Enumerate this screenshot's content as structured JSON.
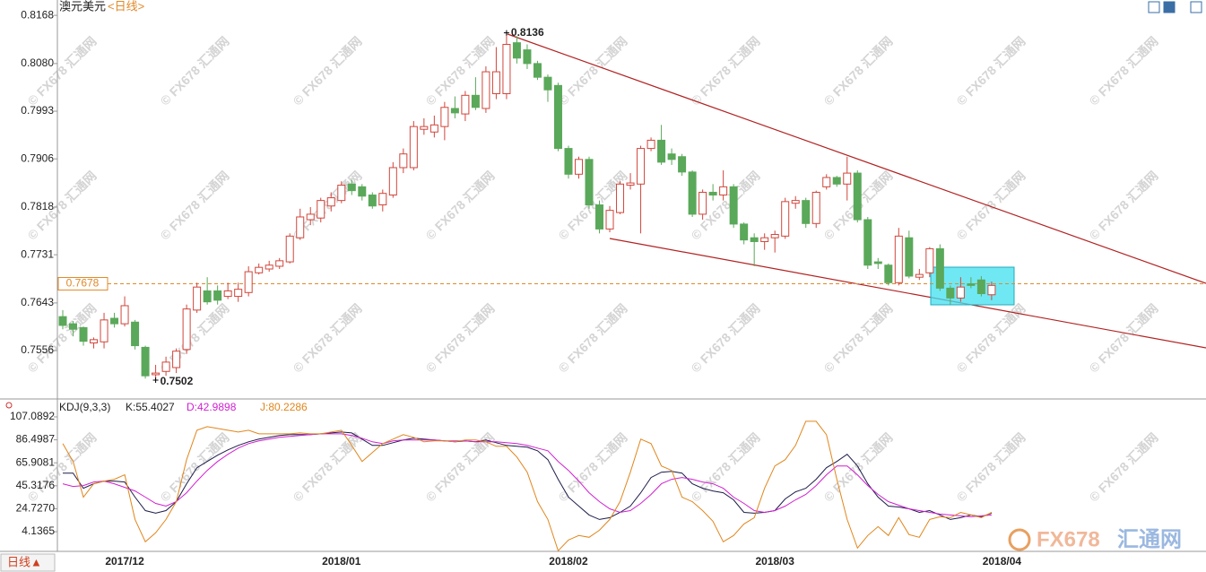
{
  "header": {
    "symbol": "澳元美元",
    "period": "<日线>"
  },
  "watermark": "© FX678 汇通网",
  "logo": {
    "brand": "FX678",
    "name": "汇通网"
  },
  "period_button": "日线▲",
  "chart_data": [
    {
      "type": "candlestick",
      "up_color": "#d0463c",
      "down_color": "#5aa85a",
      "open": [
        0.7618,
        0.7605,
        0.7598,
        0.757,
        0.7572,
        0.7615,
        0.7605,
        0.7608,
        0.7562,
        0.7512,
        0.7518,
        0.7525,
        0.7558,
        0.763,
        0.7665,
        0.7665,
        0.7655,
        0.7655,
        0.7662,
        0.7698,
        0.7705,
        0.771,
        0.7718,
        0.7762,
        0.7795,
        0.7798,
        0.782,
        0.783,
        0.786,
        0.7855,
        0.784,
        0.7822,
        0.784,
        0.789,
        0.789,
        0.796,
        0.7955,
        0.7965,
        0.7998,
        0.7988,
        0.8022,
        0.7998,
        0.8025,
        0.8025,
        0.8118,
        0.8105,
        0.808,
        0.8055,
        0.804,
        0.7925,
        0.7878,
        0.7905,
        0.7822,
        0.7778,
        0.7808,
        0.7858,
        0.786,
        0.7925,
        0.794,
        0.7915,
        0.791,
        0.7882,
        0.7805,
        0.7845,
        0.784,
        0.7855,
        0.7787,
        0.7762,
        0.7755,
        0.7762,
        0.7765,
        0.7825,
        0.783,
        0.7788,
        0.7855,
        0.7872,
        0.786,
        0.788,
        0.7795,
        0.7718,
        0.7712,
        0.768,
        0.7762,
        0.769,
        0.7698,
        0.7742,
        0.767,
        0.7652,
        0.7678,
        0.7685,
        0.7658,
        null
      ],
      "close": [
        0.7602,
        0.7595,
        0.7573,
        0.7576,
        0.7612,
        0.7605,
        0.7638,
        0.7565,
        0.751,
        0.7515,
        0.7535,
        0.7555,
        0.7632,
        0.7672,
        0.7645,
        0.7648,
        0.7665,
        0.7668,
        0.77,
        0.7708,
        0.7712,
        0.772,
        0.7765,
        0.78,
        0.7805,
        0.783,
        0.7835,
        0.7858,
        0.7848,
        0.7838,
        0.782,
        0.7843,
        0.789,
        0.7915,
        0.7965,
        0.7965,
        0.7968,
        0.8,
        0.799,
        0.8022,
        0.8,
        0.8065,
        0.8065,
        0.8115,
        0.809,
        0.808,
        0.8055,
        0.8032,
        0.7925,
        0.7878,
        0.7905,
        0.7822,
        0.7778,
        0.7812,
        0.786,
        0.7862,
        0.7925,
        0.794,
        0.79,
        0.7905,
        0.7882,
        0.7805,
        0.7845,
        0.784,
        0.7855,
        0.7787,
        0.7758,
        0.7755,
        0.7762,
        0.7768,
        0.7828,
        0.783,
        0.7788,
        0.7845,
        0.7872,
        0.786,
        0.788,
        0.7795,
        0.7712,
        0.7715,
        0.768,
        0.7765,
        0.7692,
        0.7695,
        0.7742,
        0.767,
        0.7652,
        0.7672,
        0.7675,
        0.766,
        0.7675,
        null
      ],
      "high": [
        0.763,
        0.761,
        0.76,
        0.758,
        0.7625,
        0.7625,
        0.7655,
        0.7612,
        0.7565,
        0.753,
        0.7545,
        0.756,
        0.764,
        0.768,
        0.769,
        0.7675,
        0.768,
        0.768,
        0.771,
        0.7715,
        0.772,
        0.7725,
        0.777,
        0.7815,
        0.7818,
        0.7835,
        0.7845,
        0.7865,
        0.7868,
        0.786,
        0.7845,
        0.785,
        0.79,
        0.7925,
        0.7975,
        0.798,
        0.7985,
        0.801,
        0.802,
        0.803,
        0.8055,
        0.8075,
        0.811,
        0.8136,
        0.813,
        0.8115,
        0.8085,
        0.806,
        0.8045,
        0.793,
        0.791,
        0.791,
        0.783,
        0.782,
        0.7865,
        0.788,
        0.793,
        0.7945,
        0.7968,
        0.7925,
        0.7915,
        0.7885,
        0.785,
        0.786,
        0.7885,
        0.786,
        0.779,
        0.777,
        0.777,
        0.7775,
        0.7835,
        0.7838,
        0.7835,
        0.7848,
        0.7878,
        0.7875,
        0.791,
        0.7885,
        0.78,
        0.7725,
        0.7715,
        0.778,
        0.7775,
        0.7705,
        0.7745,
        0.775,
        0.7675,
        0.769,
        0.769,
        0.7692,
        0.7682,
        null
      ],
      "low": [
        0.7595,
        0.7582,
        0.7565,
        0.756,
        0.756,
        0.7598,
        0.76,
        0.7558,
        0.7505,
        0.7502,
        0.751,
        0.7515,
        0.755,
        0.7625,
        0.764,
        0.764,
        0.765,
        0.7645,
        0.7655,
        0.7695,
        0.77,
        0.7705,
        0.7715,
        0.7758,
        0.7785,
        0.779,
        0.781,
        0.7825,
        0.784,
        0.783,
        0.7815,
        0.781,
        0.7835,
        0.788,
        0.7885,
        0.795,
        0.7945,
        0.794,
        0.798,
        0.7975,
        0.7995,
        0.799,
        0.8015,
        0.8015,
        0.808,
        0.807,
        0.805,
        0.801,
        0.792,
        0.787,
        0.787,
        0.7815,
        0.777,
        0.7772,
        0.7805,
        0.785,
        0.777,
        0.792,
        0.7895,
        0.7895,
        0.7875,
        0.78,
        0.7795,
        0.783,
        0.783,
        0.778,
        0.775,
        0.771,
        0.774,
        0.7735,
        0.776,
        0.7815,
        0.778,
        0.778,
        0.785,
        0.7855,
        0.783,
        0.779,
        0.7705,
        0.7705,
        0.7675,
        0.7675,
        0.7688,
        0.7685,
        0.769,
        0.7665,
        0.764,
        0.7645,
        0.767,
        0.7655,
        0.7648,
        null
      ],
      "ylim": [
        0.7471,
        0.8196
      ],
      "yticks": [
        0.8168,
        {
          "value": 0.808,
          "label": "0.8080"
        },
        0.7993,
        0.7906,
        0.7818,
        0.7731,
        0.7643,
        0.7556
      ],
      "annotations": [
        {
          "value": 0.8136,
          "at": "high"
        },
        {
          "value": 0.7502,
          "at": "low"
        }
      ],
      "current_price": 0.7678,
      "current_color": "#e08a2a"
    },
    {
      "type": "line",
      "title": "KDJ(9,3,3)",
      "categories": [
        null,
        null,
        null,
        null,
        null,
        null,
        "2017/12",
        null,
        null,
        null,
        null,
        null,
        null,
        null,
        null,
        null,
        null,
        null,
        null,
        null,
        null,
        null,
        null,
        null,
        null,
        null,
        null,
        "2018/01",
        null,
        null,
        null,
        null,
        null,
        null,
        null,
        null,
        null,
        null,
        null,
        null,
        null,
        null,
        null,
        null,
        null,
        null,
        null,
        null,
        null,
        "2018/02",
        null,
        null,
        null,
        null,
        null,
        null,
        null,
        null,
        null,
        null,
        null,
        null,
        null,
        null,
        null,
        null,
        null,
        null,
        null,
        "2018/03",
        null,
        null,
        null,
        null,
        null,
        null,
        null,
        null,
        null,
        null,
        null,
        null,
        null,
        null,
        null,
        null,
        null,
        null,
        null,
        null,
        null,
        "2018/04"
      ],
      "series": [
        {
          "name": "K:55.4027",
          "color": "#1c1c4a",
          "values": [
            56.7,
            56.7,
            43.1,
            47.1,
            49.5,
            49.5,
            48.7,
            35.1,
            23.1,
            20.7,
            23.1,
            31.1,
            47.1,
            61.5,
            67.1,
            72.7,
            77.5,
            81.5,
            84.7,
            87.1,
            88.7,
            90.3,
            91.1,
            91.1,
            91.1,
            91.9,
            92.7,
            93.5,
            92.7,
            87.1,
            81.5,
            81.5,
            83.9,
            86.3,
            87.9,
            87.1,
            86.3,
            85.5,
            84.7,
            85.5,
            84.7,
            86.3,
            83.9,
            81.5,
            80.7,
            79.9,
            76.7,
            68.7,
            51.1,
            35.1,
            27.1,
            19.1,
            15.1,
            16.7,
            21.5,
            27.1,
            39.1,
            52.7,
            57.5,
            58.3,
            56.7,
            47.1,
            43.1,
            40.7,
            39.1,
            32.7,
            21.5,
            20.7,
            21.5,
            23.1,
            33.5,
            39.9,
            43.1,
            51.1,
            61.5,
            67.1,
            73.5,
            63.1,
            47.1,
            35.1,
            27.1,
            26.3,
            24.7,
            21.5,
            23.1,
            19.1,
            15.1,
            16.7,
            19.1,
            17.5,
            20.7,
            null
          ]
        },
        {
          "name": "D:42.9898",
          "color": "#d21fd2",
          "values": [
            47.1,
            44.7,
            45.5,
            48.7,
            49.5,
            47.1,
            43.9,
            40.7,
            35.1,
            29.5,
            27.1,
            31.1,
            39.1,
            49.5,
            59.1,
            67.1,
            73.5,
            79.1,
            83.1,
            85.5,
            87.1,
            88.7,
            89.5,
            90.3,
            91.1,
            91.9,
            91.9,
            91.9,
            90.3,
            87.9,
            84.7,
            83.1,
            85.5,
            86.3,
            86.3,
            86.3,
            86.3,
            85.5,
            85.5,
            85.5,
            84.7,
            84.7,
            84.7,
            83.9,
            83.1,
            81.5,
            79.1,
            76.7,
            67.1,
            59.1,
            49.5,
            39.1,
            31.1,
            24.7,
            21.5,
            23.1,
            29.5,
            37.5,
            47.1,
            51.1,
            52.7,
            51.1,
            48.7,
            47.1,
            43.1,
            35.1,
            29.5,
            23.1,
            21.5,
            23.1,
            27.1,
            32.7,
            37.5,
            45.5,
            55.1,
            63.1,
            63.1,
            55.1,
            45.5,
            37.5,
            31.1,
            27.9,
            24.7,
            23.1,
            21.5,
            19.9,
            19.1,
            18.3,
            17.5,
            18.3,
            19.1,
            null
          ]
        },
        {
          "name": "J:80.2286",
          "color": "#e0861c",
          "values": [
            83.1,
            67.1,
            35.1,
            47.1,
            49.5,
            51.1,
            55.1,
            15.1,
            -4.9,
            3.1,
            15.1,
            31.1,
            68.7,
            95.1,
            98.3,
            96.7,
            95.1,
            93.5,
            95.1,
            91.9,
            91.9,
            91.9,
            91.9,
            92.7,
            91.9,
            91.9,
            93.5,
            95.1,
            81.5,
            67.1,
            75.1,
            83.1,
            87.1,
            91.1,
            88.7,
            84.7,
            85.5,
            85.5,
            84.7,
            86.3,
            86.3,
            84.7,
            80.7,
            80.7,
            71.1,
            57.5,
            31.1,
            15.1,
            -12.9,
            -3.3,
            0.7,
            -0.9,
            5.5,
            15.1,
            31.1,
            57.5,
            87.1,
            83.1,
            63.1,
            59.1,
            35.1,
            31.1,
            23.1,
            13.5,
            -4.9,
            0.7,
            11.1,
            16.7,
            43.1,
            63.1,
            68.7,
            81.5,
            103.1,
            103.1,
            91.1,
            51.1,
            15.1,
            -10.5,
            0.7,
            8.7,
            0.7,
            16.7,
            1.5,
            -0.9,
            15.1,
            17.5,
            16.7,
            21.5,
            19.1,
            16.7,
            21.5,
            null
          ]
        }
      ],
      "ylim": [
        -13.5,
        117.5
      ],
      "yticks": [
        107.0892,
        86.4987,
        65.9081,
        45.3176,
        {
          "value": 24.727,
          "label": "24.7270"
        },
        4.1365
      ]
    }
  ]
}
